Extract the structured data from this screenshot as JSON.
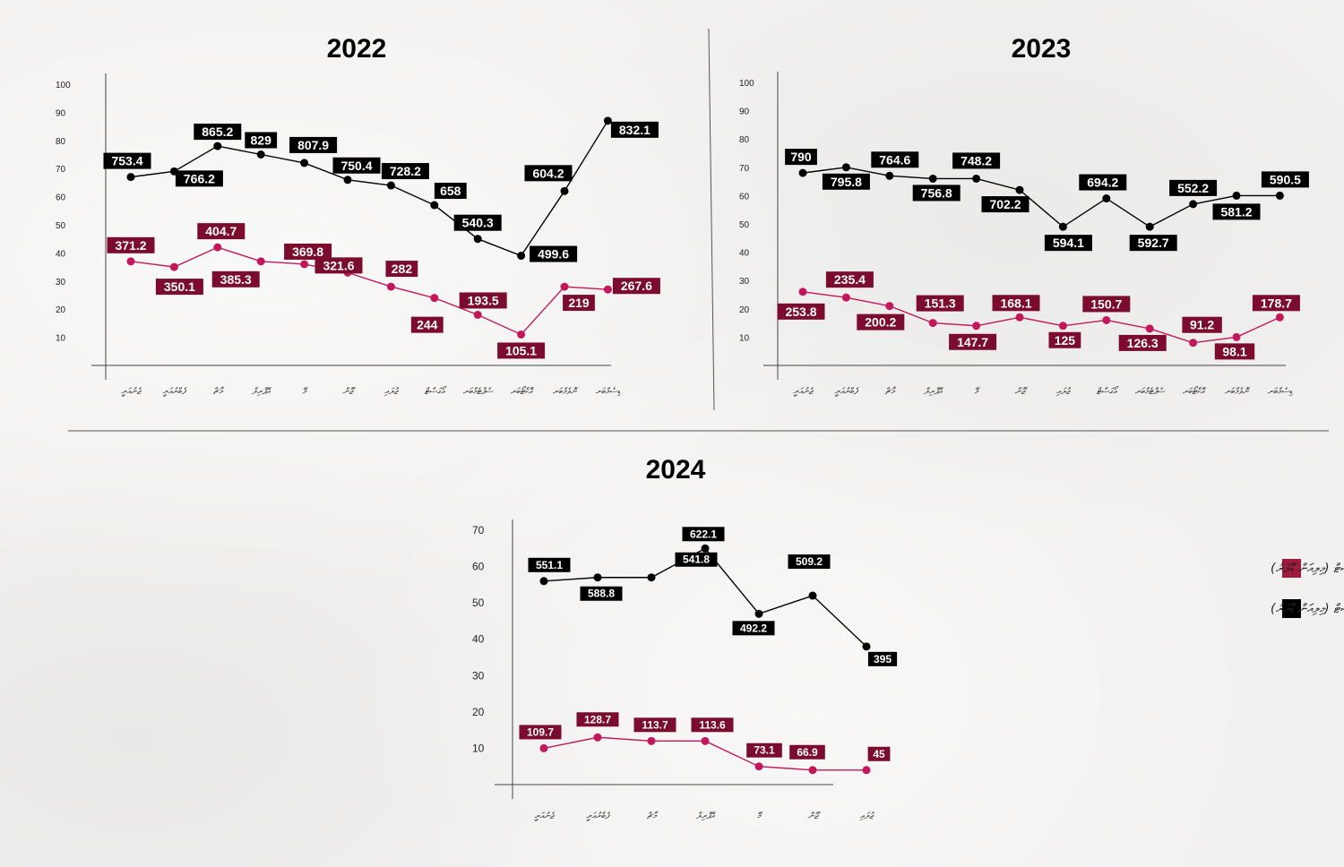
{
  "colors": {
    "black_series": "#000000",
    "red_series": "#c2185b",
    "red_label": "#7b0c2e",
    "axis": "#444444",
    "legend_red": "#9e1b3f"
  },
  "legend": [
    {
      "name": "ޓޫރިސްޓް ރިސޯޓް (މިލިއަން ޑޮލަރު)",
      "color_key": "legend_red"
    },
    {
      "name": "ޖުމްލަ ރިސޯޓް (މިލިއަން ޑޮލަރު)",
      "color_key": "black_series"
    }
  ],
  "chart_data": [
    {
      "type": "line",
      "title": "2022",
      "y_ticks": [
        "100",
        "90",
        "80",
        "70",
        "60",
        "50",
        "40",
        "30",
        "20",
        "10"
      ],
      "ylim": [
        0,
        100
      ],
      "categories": [
        "ޖެނުއަރީ",
        "ފެބްރުއަރީ",
        "މާޗް",
        "އޭޕްރިލް",
        "މޭ",
        "ޖޫން",
        "ޖުލައި",
        "އޯގަސްޓް",
        "ސެޕްޓެމްބަރ",
        "އޮކްޓޯބަރ",
        "ނޮވެމްބަރ",
        "ޑިސެމްބަރ"
      ],
      "series": [
        {
          "name": "black",
          "color_key": "black_series",
          "label_bg": "black_series",
          "values": [
            67,
            69,
            78,
            75,
            72,
            66,
            64,
            57,
            45,
            39,
            62,
            87
          ],
          "labels": [
            "753.4",
            "766.2",
            "865.2",
            "829",
            "807.9",
            "750.4",
            "728.2",
            "658",
            "540.3",
            "499.6",
            "604.2",
            "832.1"
          ]
        },
        {
          "name": "red",
          "color_key": "red_series",
          "label_bg": "red_label",
          "values": [
            37,
            35,
            42,
            37,
            36,
            33,
            28,
            24,
            18,
            11,
            28,
            27
          ],
          "labels": [
            "371.2",
            "350.1",
            "404.7",
            "385.3",
            "369.8",
            "321.6",
            "282",
            "244",
            "193.5",
            "105.1",
            "219",
            "267.6"
          ]
        }
      ]
    },
    {
      "type": "line",
      "title": "2023",
      "y_ticks": [
        "100",
        "90",
        "80",
        "70",
        "60",
        "50",
        "40",
        "30",
        "20",
        "10"
      ],
      "ylim": [
        0,
        100
      ],
      "categories": [
        "ޖެނުއަރީ",
        "ފެބްރުއަރީ",
        "މާޗް",
        "އޭޕްރިލް",
        "މޭ",
        "ޖޫން",
        "ޖުލައި",
        "އޯގަސްޓް",
        "ސެޕްޓެމްބަރ",
        "އޮކްޓޯބަރ",
        "ނޮވެމްބަރ",
        "ޑިސެމްބަރ"
      ],
      "series": [
        {
          "name": "black",
          "color_key": "black_series",
          "label_bg": "black_series",
          "values": [
            68,
            70,
            67,
            66,
            66,
            62,
            49,
            59,
            49,
            57,
            60,
            60
          ],
          "labels": [
            "790",
            "795.8",
            "764.6",
            "756.8",
            "748.2",
            "702.2",
            "594.1",
            "694.2",
            "592.7",
            "552.2",
            "581.2",
            "590.5"
          ]
        },
        {
          "name": "red",
          "color_key": "red_series",
          "label_bg": "red_label",
          "values": [
            26,
            24,
            21,
            15,
            14,
            17,
            14,
            16,
            13,
            8,
            10,
            17
          ],
          "labels": [
            "253.8",
            "235.4",
            "200.2",
            "151.3",
            "147.7",
            "168.1",
            "125",
            "150.7",
            "126.3",
            "91.2",
            "98.1",
            "178.7"
          ]
        }
      ]
    },
    {
      "type": "line",
      "title": "2024",
      "y_ticks": [
        "70",
        "60",
        "50",
        "40",
        "30",
        "20",
        "10"
      ],
      "ylim": [
        0,
        70
      ],
      "categories": [
        "ޖެނުއަރީ",
        "ފެބްރުއަރީ",
        "މާޗް",
        "އޭޕްރިލް",
        "މޭ",
        "ޖޫން",
        "ޖުލައި"
      ],
      "series": [
        {
          "name": "black",
          "color_key": "black_series",
          "label_bg": "black_series",
          "values": [
            56,
            57,
            57,
            65,
            47,
            52,
            38
          ],
          "labels": [
            "551.1",
            "588.8",
            "541.8",
            "622.1",
            "492.2",
            "509.2",
            "395"
          ]
        },
        {
          "name": "red",
          "color_key": "red_series",
          "label_bg": "red_label",
          "values": [
            10,
            13,
            12,
            12,
            5,
            4,
            4
          ],
          "labels": [
            "109.7",
            "128.7",
            "113.7",
            "113.6",
            "73.1",
            "66.9",
            "45"
          ]
        }
      ]
    }
  ]
}
